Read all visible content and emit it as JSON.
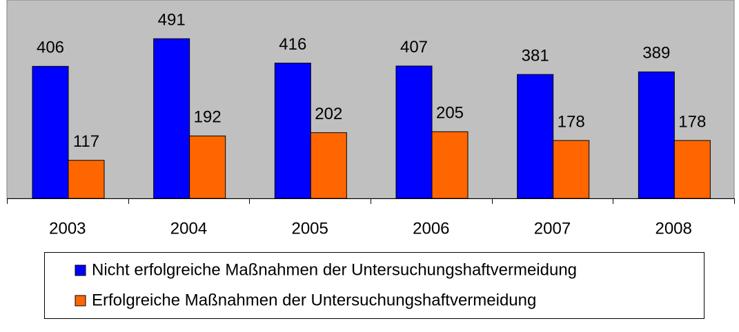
{
  "chart_data": {
    "type": "bar",
    "categories": [
      "2003",
      "2004",
      "2005",
      "2006",
      "2007",
      "2008"
    ],
    "series": [
      {
        "name": "Nicht erfolgreiche Maßnahmen der Untersuchungshaftvermeidung",
        "color": "#0000ff",
        "values": [
          406,
          491,
          416,
          407,
          381,
          389
        ]
      },
      {
        "name": "Erfolgreiche Maßnahmen der Untersuchungshaftvermeidung",
        "color": "#ff6600",
        "values": [
          117,
          192,
          202,
          205,
          178,
          178
        ]
      }
    ],
    "ylim": [
      0,
      610
    ]
  }
}
